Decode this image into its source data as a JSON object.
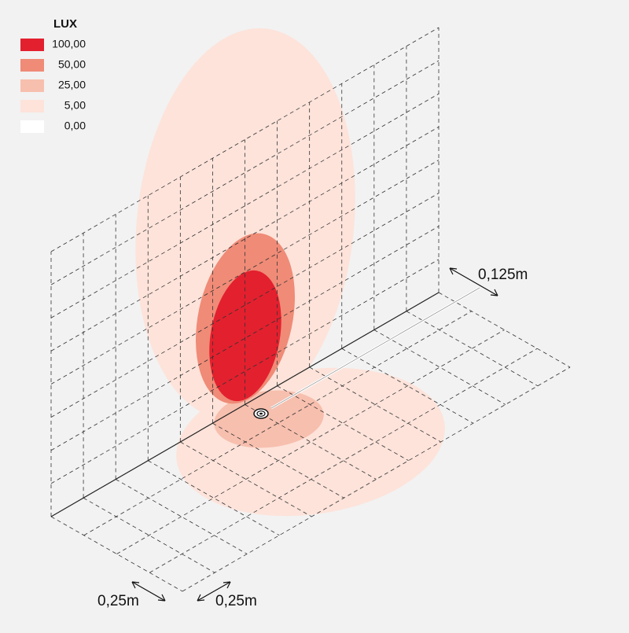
{
  "legend": {
    "title": "LUX",
    "items": [
      {
        "label": "100,00",
        "color": "#e3202e"
      },
      {
        "label": "50,00",
        "color": "#ef8b77"
      },
      {
        "label": "25,00",
        "color": "#f7bfae"
      },
      {
        "label": "5,00",
        "color": "#fde3da"
      },
      {
        "label": "0,00",
        "color": "#ffffff"
      }
    ]
  },
  "dimensions": {
    "height_offset": "0,125m",
    "depth": "0,25m",
    "width": "0,25m"
  }
}
